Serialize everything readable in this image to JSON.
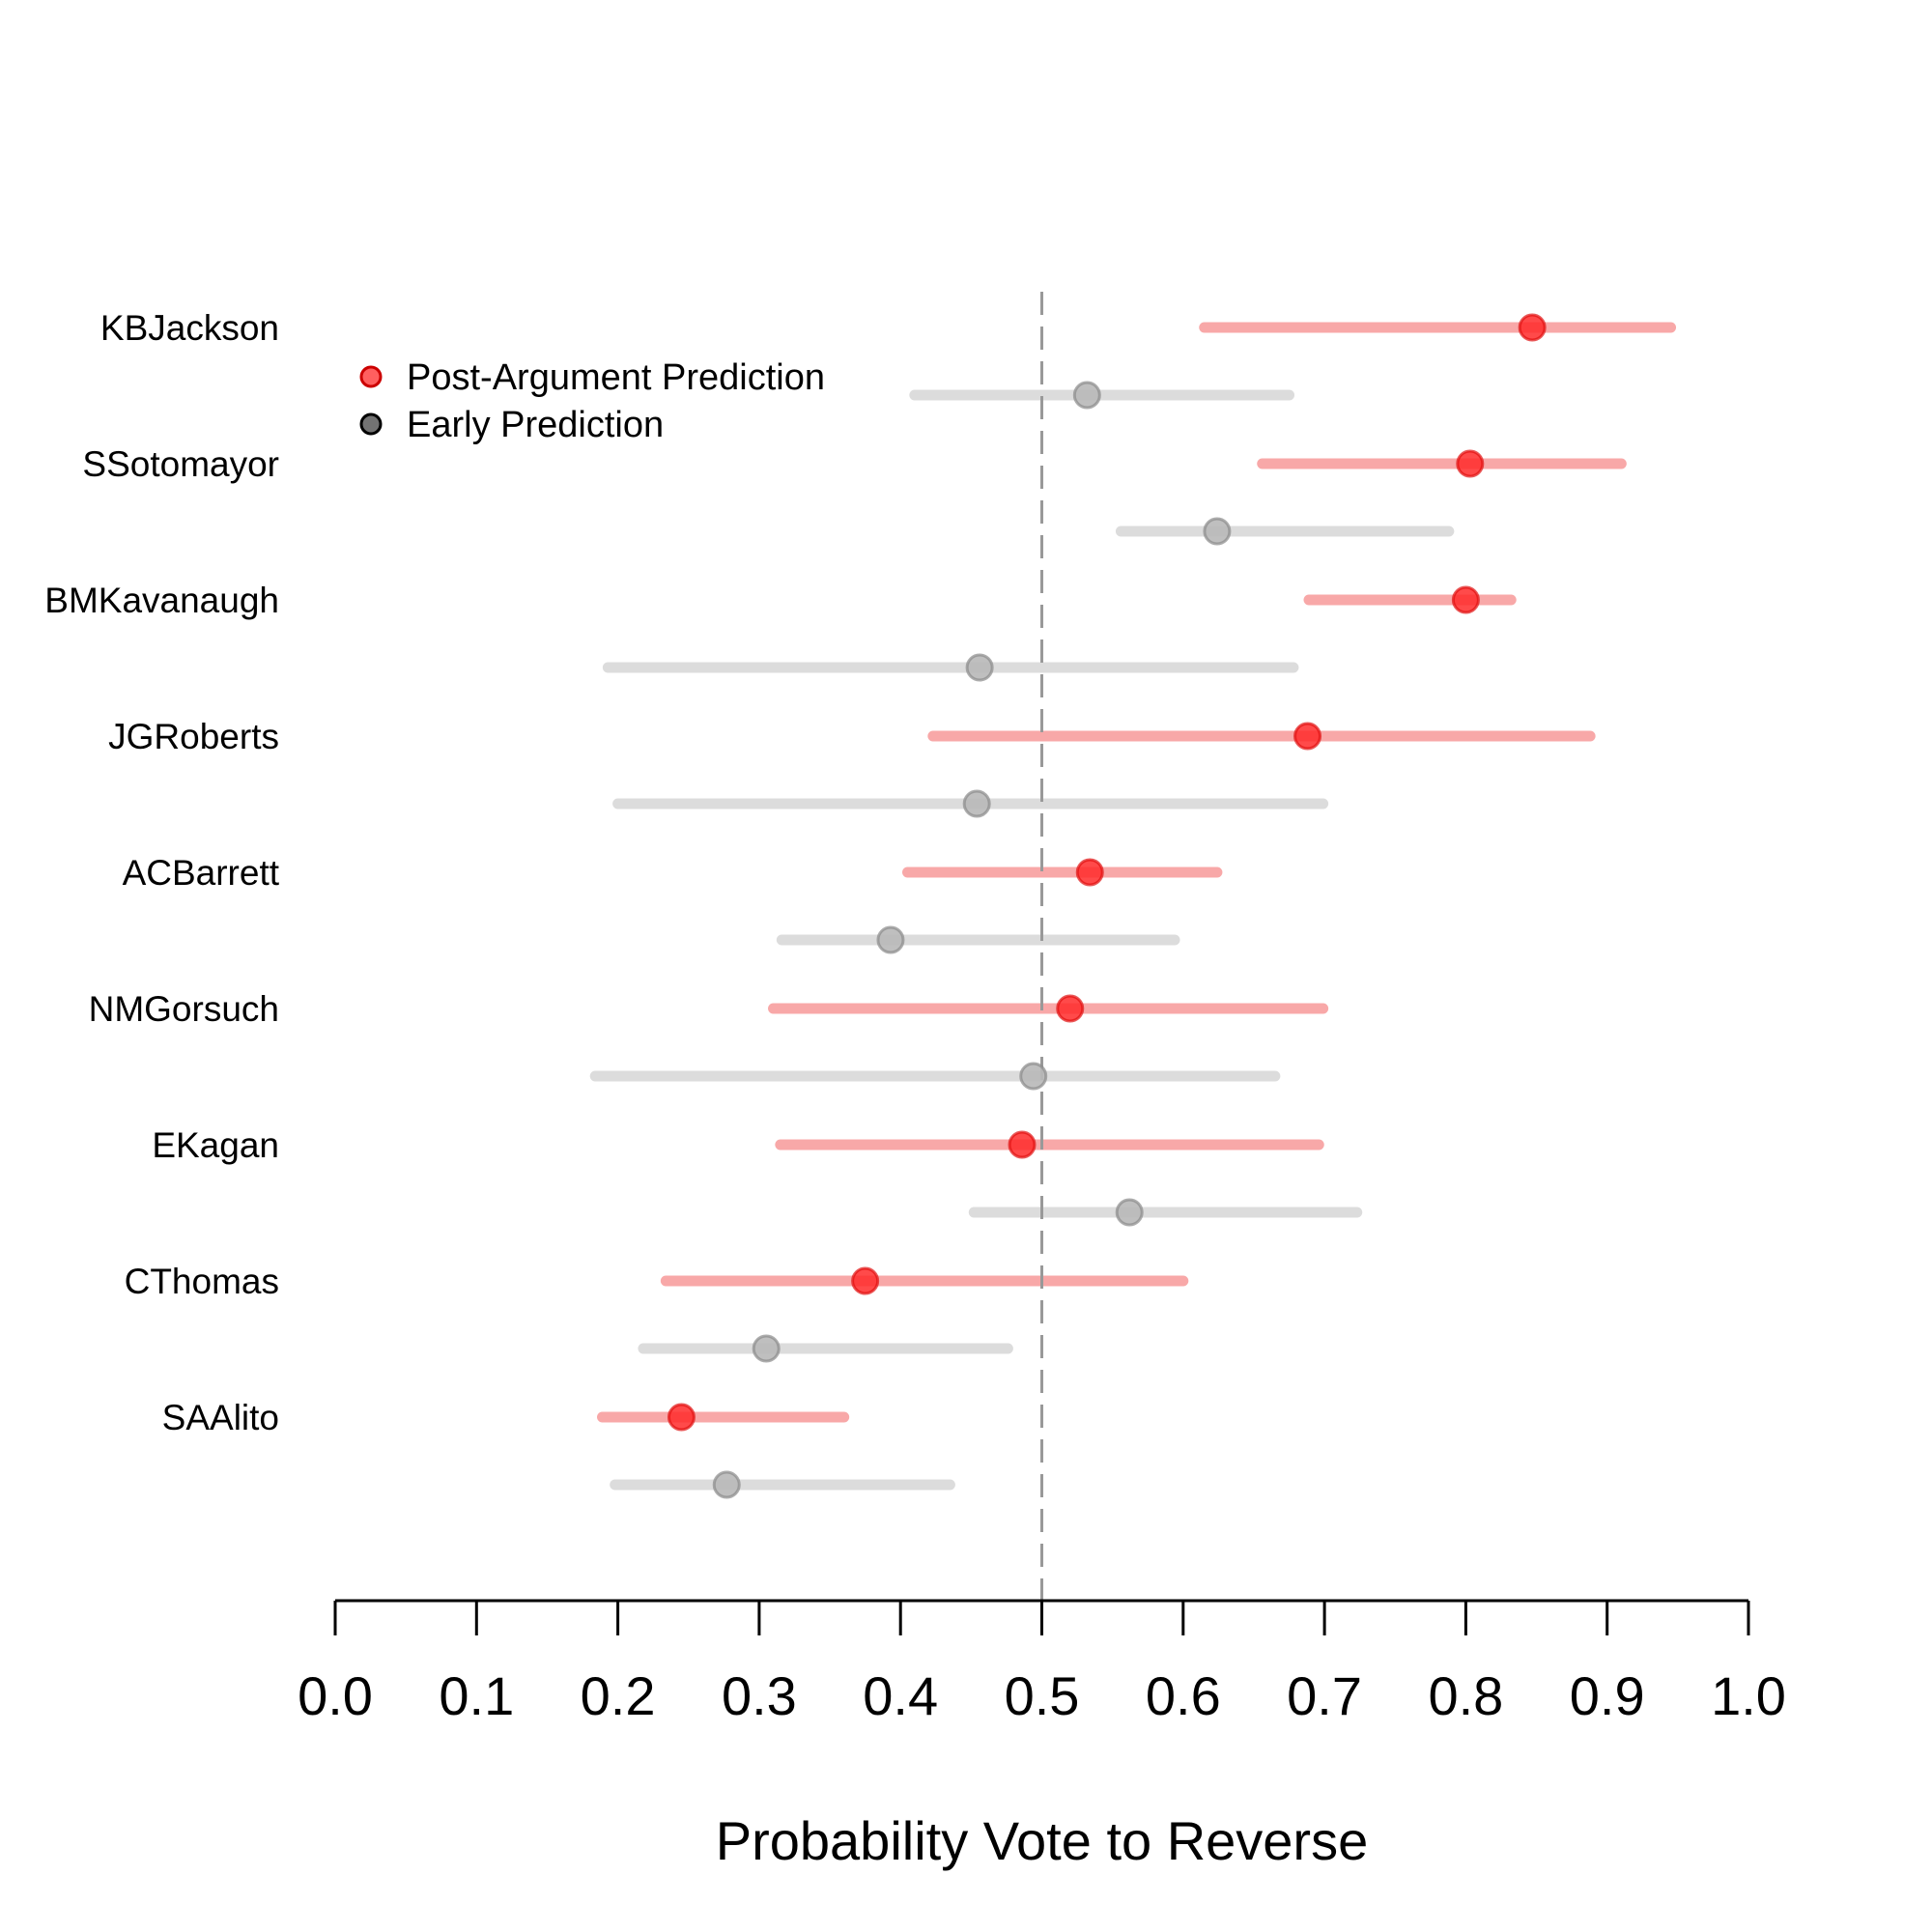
{
  "chart_data": {
    "type": "dot-interval",
    "title": "",
    "xlabel": "Probability Vote to Reverse",
    "ylabel": "",
    "xlim": [
      0.0,
      1.0
    ],
    "x_ticks": [
      "0.0",
      "0.1",
      "0.2",
      "0.3",
      "0.4",
      "0.5",
      "0.6",
      "0.7",
      "0.8",
      "0.9",
      "1.0"
    ],
    "reference_line": 0.5,
    "legend": {
      "placement": "top-left",
      "entries": [
        {
          "name": "Post-Argument Prediction",
          "color": "#ff0000"
        },
        {
          "name": "Early Prediction",
          "color": "#000000"
        }
      ]
    },
    "colors": {
      "post_point": "#ff2a2a",
      "post_interval": "#f8a8a8",
      "early_point": "#b8b8b8",
      "early_interval": "#dcdcdc",
      "reference": "#999999",
      "axis": "#000000"
    },
    "justices": [
      {
        "name": "KBJackson",
        "post": {
          "est": 0.847,
          "low": 0.615,
          "high": 0.945
        },
        "early": {
          "est": 0.532,
          "low": 0.41,
          "high": 0.675
        }
      },
      {
        "name": "SSotomayor",
        "post": {
          "est": 0.803,
          "low": 0.656,
          "high": 0.91
        },
        "early": {
          "est": 0.624,
          "low": 0.556,
          "high": 0.788
        }
      },
      {
        "name": "BMKavanaugh",
        "post": {
          "est": 0.8,
          "low": 0.689,
          "high": 0.832
        },
        "early": {
          "est": 0.456,
          "low": 0.193,
          "high": 0.678
        }
      },
      {
        "name": "JGRoberts",
        "post": {
          "est": 0.688,
          "low": 0.423,
          "high": 0.888
        },
        "early": {
          "est": 0.454,
          "low": 0.2,
          "high": 0.699
        }
      },
      {
        "name": "ACBarrett",
        "post": {
          "est": 0.534,
          "low": 0.405,
          "high": 0.624
        },
        "early": {
          "est": 0.393,
          "low": 0.316,
          "high": 0.594
        }
      },
      {
        "name": "NMGorsuch",
        "post": {
          "est": 0.52,
          "low": 0.31,
          "high": 0.699
        },
        "early": {
          "est": 0.494,
          "low": 0.184,
          "high": 0.665
        }
      },
      {
        "name": "EKagan",
        "post": {
          "est": 0.486,
          "low": 0.315,
          "high": 0.696
        },
        "early": {
          "est": 0.562,
          "low": 0.452,
          "high": 0.723
        }
      },
      {
        "name": "CThomas",
        "post": {
          "est": 0.375,
          "low": 0.234,
          "high": 0.6
        },
        "early": {
          "est": 0.305,
          "low": 0.218,
          "high": 0.476
        }
      },
      {
        "name": "SAAlito",
        "post": {
          "est": 0.245,
          "low": 0.189,
          "high": 0.36
        },
        "early": {
          "est": 0.277,
          "low": 0.198,
          "high": 0.435
        }
      }
    ]
  }
}
